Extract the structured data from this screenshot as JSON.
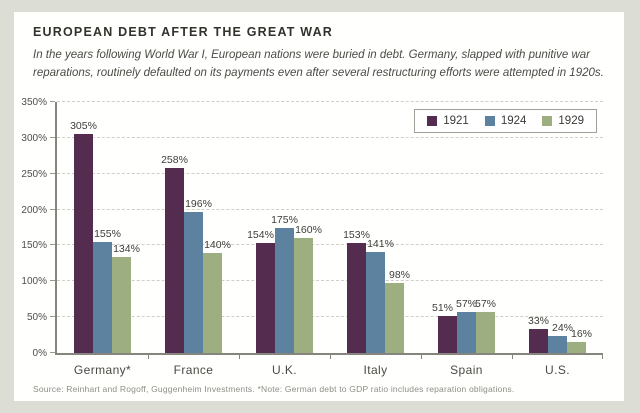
{
  "header": {
    "title": "EUROPEAN DEBT AFTER THE GREAT WAR",
    "subtitle_lines": [
      "In the years following World War I, European nations were buried in debt. Germany, slapped with punitive war",
      "reparations, routinely defaulted on its payments even after several restructuring efforts were attempted in 1920s."
    ]
  },
  "footer": {
    "source": "Source: Reinhart and Rogoff, Guggenheim Investments. *Note: German debt to GDP ratio includes reparation obligations."
  },
  "chart_data": {
    "type": "bar",
    "title": "EUROPEAN DEBT AFTER THE GREAT WAR",
    "categories": [
      "Germany*",
      "France",
      "U.K.",
      "Italy",
      "Spain",
      "U.S."
    ],
    "series": [
      {
        "name": "1921",
        "color": "#542c50",
        "values": [
          305,
          258,
          154,
          153,
          51,
          33
        ]
      },
      {
        "name": "1924",
        "color": "#5c82a0",
        "values": [
          155,
          196,
          175,
          141,
          57,
          24
        ]
      },
      {
        "name": "1929",
        "color": "#9daf81",
        "values": [
          134,
          140,
          160,
          98,
          57,
          16
        ]
      }
    ],
    "value_suffix": "%",
    "ylabel": "",
    "xlabel": "",
    "ylim": [
      0,
      350
    ],
    "ytick_step": 50,
    "yticks": [
      "0%",
      "50%",
      "100%",
      "150%",
      "200%",
      "250%",
      "300%",
      "350%"
    ],
    "grid": "horizontal-dashed",
    "legend_position": "top-right"
  },
  "palette": {
    "page_bg": "#dcded6",
    "card_bg": "#fffffe",
    "axis": "#85857e",
    "grid": "#cfcfc7",
    "title_text": "#32322c",
    "body_text": "#4b4b44",
    "muted_text": "#8e8e86"
  }
}
